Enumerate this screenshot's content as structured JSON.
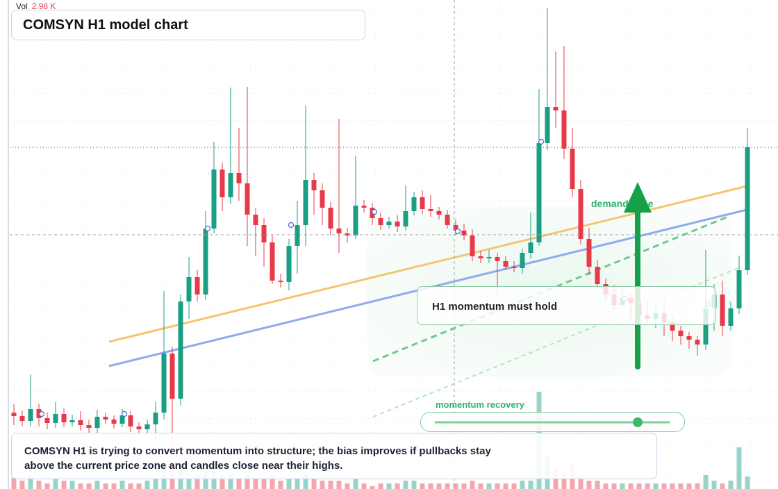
{
  "chart_data": {
    "type": "candlestick",
    "title": "COMSYN H1 model chart",
    "volume_label": "Vol",
    "volume_value": "2.98 K",
    "annotations": {
      "zone": "demand zone",
      "callout": "H1 momentum must hold",
      "slider": "momentum recovery",
      "summary": "COMSYN H1 is trying to convert momentum into structure; the bias improves if pullbacks stay above the current price zone and candles close near their highs."
    },
    "up_color": "#1a9e84",
    "down_color": "#e8394a",
    "ylim": [
      0,
      70.4
    ],
    "volume_ylim": [
      0,
      17.6
    ],
    "open": [
      11.0,
      10.5,
      9.8,
      11.5,
      10.2,
      9.5,
      10.8,
      9.6,
      9.9,
      9.2,
      8.8,
      10.4,
      10.0,
      9.4,
      10.6,
      9.0,
      8.6,
      9.3,
      11.0,
      19.5,
      13.0,
      27.0,
      30.5,
      28.0,
      37.5,
      46.0,
      42.0,
      45.5,
      44.0,
      39.5,
      38.0,
      35.5,
      30.0,
      29.8,
      35.0,
      38.0,
      44.5,
      43.0,
      40.5,
      37.5,
      36.8,
      36.5,
      40.8,
      40.5,
      39.0,
      38.0,
      38.5,
      37.8,
      40.0,
      42.0,
      40.3,
      40.0,
      39.5,
      38.0,
      37.2,
      36.5,
      33.5,
      33.2,
      33.4,
      32.8,
      32.0,
      31.8,
      34.0,
      35.5,
      49.8,
      55.0,
      54.5,
      49.0,
      43.2,
      36.0,
      32.0,
      29.5,
      28.0,
      26.5,
      27.5,
      26.8,
      25.0,
      24.5,
      25.3,
      24.0,
      22.8,
      22.0,
      21.5,
      20.8,
      26.0,
      28.0,
      23.5,
      26.0,
      31.5
    ],
    "high": [
      12.2,
      11.3,
      16.5,
      12.3,
      11.0,
      12.5,
      11.6,
      10.7,
      11.2,
      10.0,
      11.4,
      11.0,
      10.6,
      11.5,
      11.2,
      9.6,
      10.0,
      12.5,
      28.5,
      20.5,
      28.0,
      33.4,
      31.5,
      40.0,
      50.0,
      47.0,
      57.8,
      52.0,
      57.9,
      40.5,
      39.0,
      36.5,
      31.0,
      36.0,
      41.5,
      55.2,
      45.5,
      44.0,
      41.3,
      53.3,
      37.6,
      48.0,
      41.6,
      41.2,
      39.8,
      39.2,
      39.4,
      43.7,
      42.8,
      43.0,
      42.3,
      40.6,
      40.2,
      38.8,
      38.2,
      37.4,
      34.3,
      34.4,
      34.0,
      33.5,
      32.8,
      34.6,
      39.8,
      57.6,
      69.2,
      63.0,
      63.8,
      52.0,
      44.5,
      37.6,
      33.0,
      30.3,
      29.4,
      28.8,
      28.1,
      29.3,
      27.0,
      26.5,
      27.0,
      24.8,
      23.5,
      22.6,
      22.0,
      34.4,
      29.5,
      30.0,
      27.0,
      33.6,
      52.0
    ],
    "low": [
      9.2,
      9.0,
      9.0,
      9.0,
      8.6,
      8.8,
      8.9,
      9.0,
      8.4,
      8.0,
      8.1,
      9.3,
      8.7,
      8.9,
      8.2,
      7.7,
      8.0,
      7.0,
      10.0,
      5.0,
      12.0,
      24.5,
      27.0,
      27.2,
      36.8,
      40.0,
      41.0,
      41.5,
      35.0,
      33.6,
      32.0,
      29.5,
      29.0,
      28.6,
      31.0,
      35.0,
      39.5,
      38.0,
      36.5,
      34.0,
      35.5,
      36.0,
      39.8,
      38.0,
      37.3,
      37.5,
      37.0,
      37.2,
      39.4,
      39.6,
      39.2,
      38.8,
      37.5,
      36.5,
      35.8,
      32.8,
      32.5,
      32.6,
      28.0,
      31.5,
      31.2,
      31.0,
      33.2,
      35.0,
      48.8,
      52.0,
      47.5,
      42.0,
      35.2,
      30.8,
      28.8,
      27.2,
      25.8,
      26.0,
      24.2,
      23.8,
      23.6,
      23.2,
      22.0,
      21.3,
      20.8,
      20.2,
      19.2,
      20.0,
      22.8,
      22.0,
      22.8,
      25.2,
      30.8
    ],
    "close": [
      10.5,
      9.8,
      11.5,
      10.2,
      9.5,
      10.8,
      9.6,
      9.9,
      9.2,
      8.8,
      10.4,
      10.0,
      9.4,
      10.6,
      9.0,
      8.6,
      9.3,
      11.0,
      19.5,
      13.0,
      27.0,
      30.5,
      28.0,
      37.5,
      46.0,
      42.0,
      45.5,
      44.0,
      39.5,
      38.0,
      35.5,
      30.0,
      29.8,
      35.0,
      38.0,
      44.5,
      43.0,
      40.5,
      37.5,
      36.8,
      36.5,
      40.8,
      40.5,
      39.0,
      38.0,
      38.5,
      37.8,
      40.0,
      42.0,
      40.3,
      40.0,
      39.5,
      38.0,
      37.2,
      36.5,
      33.5,
      33.2,
      33.4,
      32.8,
      32.0,
      31.8,
      34.0,
      35.5,
      49.8,
      55.0,
      54.5,
      49.0,
      43.2,
      36.0,
      32.0,
      29.5,
      28.0,
      26.5,
      27.5,
      26.8,
      25.0,
      24.5,
      25.3,
      24.0,
      22.8,
      22.0,
      21.5,
      20.8,
      26.0,
      28.0,
      23.5,
      26.0,
      31.5,
      49.2
    ],
    "volume": [
      0.4,
      0.3,
      0.5,
      0.3,
      0.2,
      0.4,
      0.3,
      0.3,
      0.2,
      0.2,
      0.3,
      0.2,
      0.2,
      0.3,
      0.2,
      0.2,
      0.3,
      0.4,
      0.9,
      0.7,
      0.8,
      0.4,
      0.5,
      0.6,
      0.9,
      0.5,
      0.6,
      0.4,
      0.5,
      0.4,
      0.4,
      0.5,
      0.3,
      0.4,
      0.4,
      0.6,
      0.4,
      0.3,
      0.3,
      0.3,
      0.2,
      0.4,
      0.2,
      0.1,
      0.2,
      0.2,
      0.2,
      0.3,
      0.3,
      0.2,
      0.2,
      0.2,
      0.2,
      0.2,
      0.2,
      0.3,
      0.2,
      0.2,
      0.2,
      0.2,
      0.2,
      0.3,
      0.3,
      3.5,
      1.2,
      0.8,
      0.6,
      0.9,
      0.5,
      0.3,
      0.3,
      0.2,
      0.2,
      0.2,
      0.2,
      0.2,
      0.2,
      0.2,
      0.2,
      0.2,
      0.2,
      0.2,
      0.2,
      0.5,
      0.3,
      0.2,
      0.3,
      1.5,
      0.45
    ]
  }
}
